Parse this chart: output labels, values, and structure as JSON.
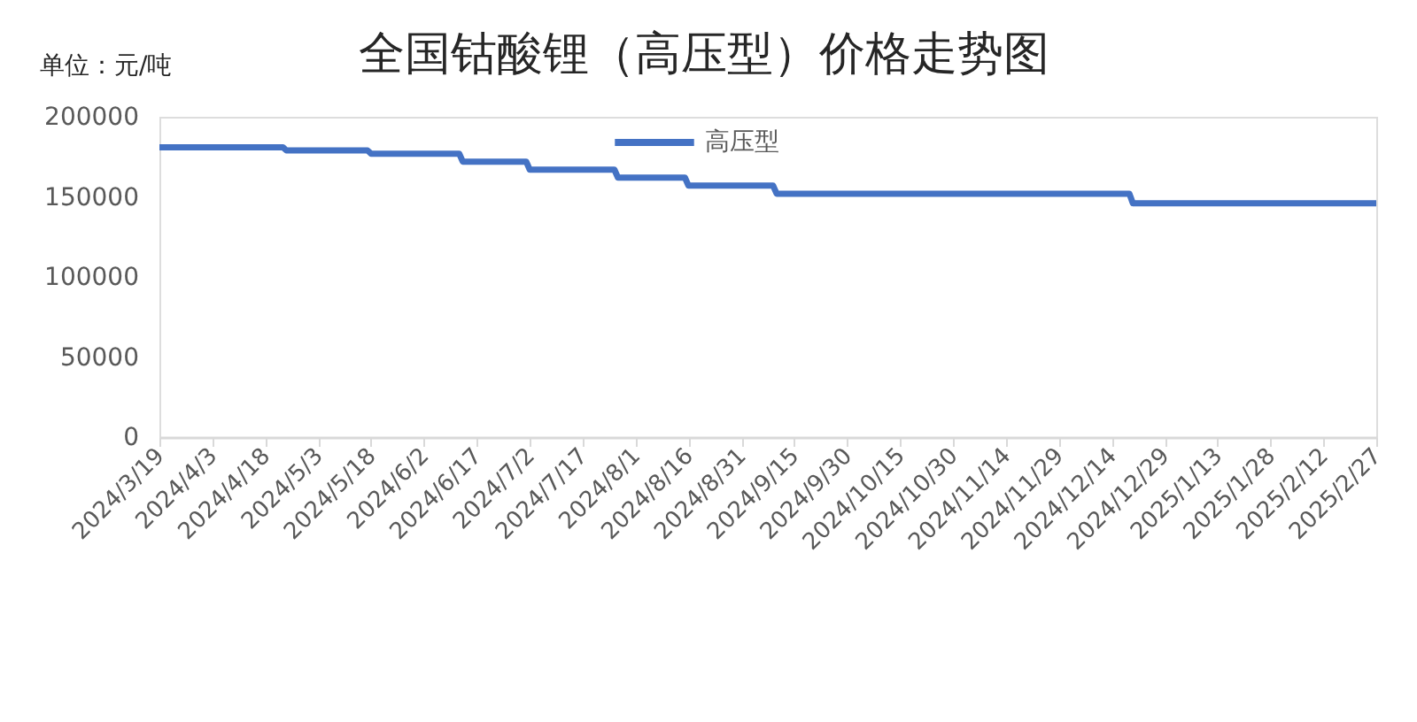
{
  "chart_data": {
    "type": "line",
    "title": "全国钴酸锂（高压型）价格走势图",
    "ylabel": "单位：元/吨",
    "x": [
      "2024-03-19",
      "2024-04-23",
      "2024-04-24",
      "2024-05-17",
      "2024-05-18",
      "2024-06-12",
      "2024-06-13",
      "2024-07-01",
      "2024-07-02",
      "2024-07-26",
      "2024-07-27",
      "2024-08-15",
      "2024-08-16",
      "2024-09-09",
      "2024-09-10",
      "2024-12-19",
      "2024-12-20",
      "2025-02-27"
    ],
    "series": [
      {
        "name": "高压型",
        "color": "#4472c4",
        "values": [
          181000,
          181000,
          179000,
          179000,
          177000,
          177000,
          172000,
          172000,
          167000,
          167000,
          162000,
          162000,
          157000,
          157000,
          152000,
          152000,
          146000,
          146000
        ]
      }
    ],
    "xlim": [
      "2024-03-19",
      "2025-02-27"
    ],
    "xticks": [
      {
        "value": "2024-03-19",
        "label": "2024/3/19"
      },
      {
        "value": "2024-04-03",
        "label": "2024/4/3"
      },
      {
        "value": "2024-04-18",
        "label": "2024/4/18"
      },
      {
        "value": "2024-05-03",
        "label": "2024/5/3"
      },
      {
        "value": "2024-05-18",
        "label": "2024/5/18"
      },
      {
        "value": "2024-06-02",
        "label": "2024/6/2"
      },
      {
        "value": "2024-06-17",
        "label": "2024/6/17"
      },
      {
        "value": "2024-07-02",
        "label": "2024/7/2"
      },
      {
        "value": "2024-07-17",
        "label": "2024/7/17"
      },
      {
        "value": "2024-08-01",
        "label": "2024/8/1"
      },
      {
        "value": "2024-08-16",
        "label": "2024/8/16"
      },
      {
        "value": "2024-08-31",
        "label": "2024/8/31"
      },
      {
        "value": "2024-09-15",
        "label": "2024/9/15"
      },
      {
        "value": "2024-09-30",
        "label": "2024/9/30"
      },
      {
        "value": "2024-10-15",
        "label": "2024/10/15"
      },
      {
        "value": "2024-10-30",
        "label": "2024/10/30"
      },
      {
        "value": "2024-11-14",
        "label": "2024/11/14"
      },
      {
        "value": "2024-11-29",
        "label": "2024/11/29"
      },
      {
        "value": "2024-12-14",
        "label": "2024/12/14"
      },
      {
        "value": "2024-12-29",
        "label": "2024/12/29"
      },
      {
        "value": "2025-01-13",
        "label": "2025/1/13"
      },
      {
        "value": "2025-01-28",
        "label": "2025/1/28"
      },
      {
        "value": "2025-02-12",
        "label": "2025/2/12"
      },
      {
        "value": "2025-02-27",
        "label": "2025/2/27"
      }
    ],
    "ylim": [
      0,
      200000
    ],
    "yticks": [
      0,
      50000,
      100000,
      150000,
      200000
    ],
    "legend": "top",
    "line_style": "solid"
  }
}
